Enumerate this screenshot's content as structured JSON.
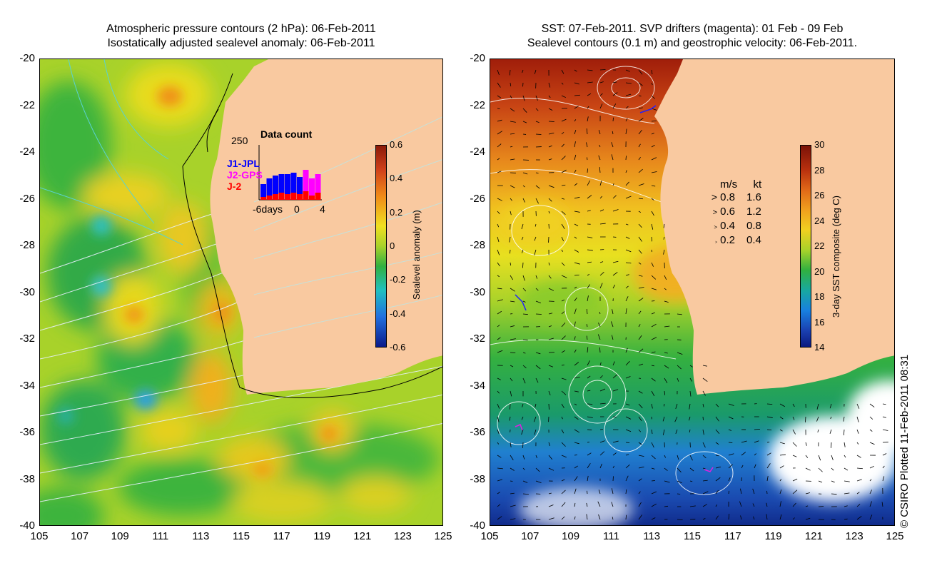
{
  "left_panel": {
    "title_line1": "Atmospheric pressure contours (2 hPa): 06-Feb-2011",
    "title_line2": "Isostatically adjusted sealevel anomaly: 06-Feb-2011",
    "y_ticks": [
      "-20",
      "-22",
      "-24",
      "-26",
      "-28",
      "-30",
      "-32",
      "-34",
      "-36",
      "-38",
      "-40"
    ],
    "x_ticks": [
      "105",
      "107",
      "109",
      "111",
      "113",
      "115",
      "117",
      "119",
      "121",
      "123",
      "125"
    ],
    "colorbar": {
      "label": "Sealevel anomaly (m)",
      "ticks": [
        "0.6",
        "0.4",
        "0.2",
        "0",
        "-0.2",
        "-0.4",
        "-0.6"
      ]
    },
    "data_count": {
      "title": "Data count",
      "y_max": "250",
      "x_labels": [
        "-6days",
        "0",
        "4"
      ],
      "legend": [
        {
          "label": "J1-JPL",
          "color": "#0000ff"
        },
        {
          "label": "J2-GPS",
          "color": "#ff00ff"
        },
        {
          "label": "J-2",
          "color": "#ff0000"
        }
      ]
    }
  },
  "right_panel": {
    "title_line1": "SST: 07-Feb-2011. SVP drifters (magenta): 01 Feb - 09 Feb",
    "title_line2": "Sealevel contours (0.1 m) and geostrophic velocity: 06-Feb-2011.",
    "y_ticks": [
      "-20",
      "-22",
      "-24",
      "-26",
      "-28",
      "-30",
      "-32",
      "-34",
      "-36",
      "-38",
      "-40"
    ],
    "x_ticks": [
      "105",
      "107",
      "109",
      "111",
      "113",
      "115",
      "117",
      "119",
      "121",
      "123",
      "125"
    ],
    "colorbar": {
      "label": "3-day SST composite (deg C)",
      "ticks": [
        "30",
        "28",
        "26",
        "24",
        "22",
        "20",
        "18",
        "16",
        "14"
      ]
    },
    "velocity_legend": {
      "header_ms": "m/s",
      "header_kt": "kt",
      "rows": [
        {
          "ms": "0.8",
          "kt": "1.6"
        },
        {
          "ms": "0.6",
          "kt": "1.2"
        },
        {
          "ms": "0.4",
          "kt": "0.8"
        },
        {
          "ms": "0.2",
          "kt": "0.4"
        }
      ]
    }
  },
  "credit": "© CSIRO Plotted 11-Feb-2011 08:31",
  "colors": {
    "land": "#f9c9a0",
    "sla_mid": "#a8d22a"
  }
}
